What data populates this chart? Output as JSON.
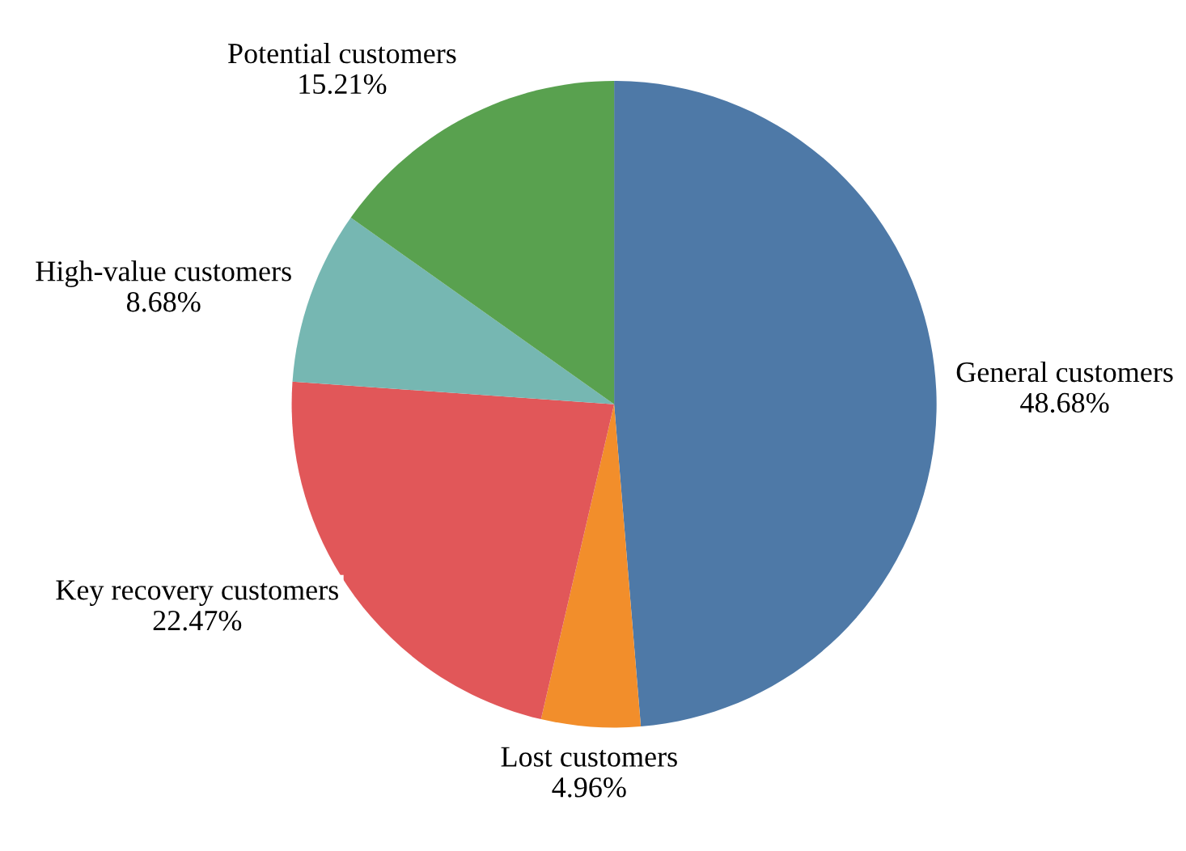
{
  "chart_data": {
    "type": "pie",
    "categories": [
      "General customers",
      "Lost customers",
      "Key recovery customers",
      "High-value customers",
      "Potential customers"
    ],
    "values": [
      48.68,
      4.96,
      22.47,
      8.68,
      15.21
    ],
    "colors": [
      "#4e79a7",
      "#f28e2b",
      "#e15759",
      "#76b7b2",
      "#59a14f"
    ],
    "value_labels": [
      "48.68%",
      "4.96%",
      "22.47%",
      "8.68%",
      "15.21%"
    ]
  }
}
